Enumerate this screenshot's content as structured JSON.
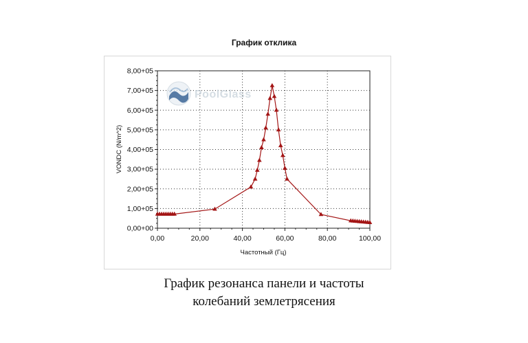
{
  "chart_data": {
    "type": "line",
    "title": "График отклика",
    "xlabel": "Частотный (Гц)",
    "ylabel": "VONDC (N/m^2)",
    "xlim": [
      0,
      100
    ],
    "ylim": [
      0,
      800000
    ],
    "grid": true,
    "x_ticks": [
      0,
      20,
      40,
      60,
      80,
      100
    ],
    "x_tick_labels": [
      "0,00",
      "20,00",
      "40,00",
      "60,00",
      "80,00",
      "100,00"
    ],
    "y_ticks": [
      0,
      100000,
      200000,
      300000,
      400000,
      500000,
      600000,
      700000,
      800000
    ],
    "y_tick_labels": [
      "0,00+00",
      "1,00+05",
      "2,00+05",
      "3,00+05",
      "4,00+05",
      "5,00+05",
      "6,00+05",
      "7,00+05",
      "8,00+05"
    ],
    "series": [
      {
        "color": "#a31515",
        "marker": "triangle",
        "x": [
          0,
          1,
          2,
          3,
          4,
          5,
          6,
          7,
          8,
          27,
          44,
          46,
          47,
          48,
          49,
          50,
          51,
          52,
          53,
          54,
          55,
          56,
          57,
          58,
          59,
          60,
          61,
          77,
          91,
          92,
          93,
          94,
          95,
          96,
          97,
          98,
          99,
          100
        ],
        "y": [
          72000,
          72000,
          72000,
          72000,
          72000,
          72000,
          72000,
          72000,
          72000,
          97000,
          210000,
          250000,
          295000,
          345000,
          410000,
          450000,
          510000,
          580000,
          660000,
          725000,
          670000,
          600000,
          500000,
          420000,
          370000,
          305000,
          250000,
          70000,
          38000,
          37000,
          36000,
          35000,
          34000,
          33000,
          32000,
          31000,
          30000,
          29000
        ]
      }
    ]
  },
  "watermark": {
    "text": "PoolGlass",
    "icon": "poolglass-logo"
  },
  "caption": {
    "line1": "График резонанса панели и частоты",
    "line2": "колебаний землетрясения"
  }
}
